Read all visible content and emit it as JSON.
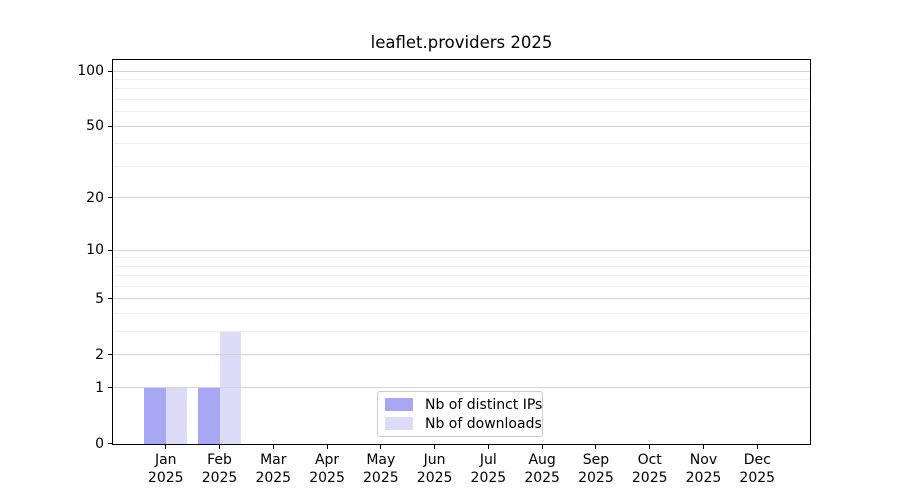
{
  "chart_data": {
    "type": "bar",
    "title": "leaflet.providers 2025",
    "categories": [
      "Jan 2025",
      "Feb 2025",
      "Mar 2025",
      "Apr 2025",
      "May 2025",
      "Jun 2025",
      "Jul 2025",
      "Aug 2025",
      "Sep 2025",
      "Oct 2025",
      "Nov 2025",
      "Dec 2025"
    ],
    "series": [
      {
        "name": "Nb of distinct IPs",
        "key": "distinct-ips",
        "values": [
          1,
          1,
          0,
          0,
          0,
          0,
          0,
          0,
          0,
          0,
          0,
          0
        ]
      },
      {
        "name": "Nb of downloads",
        "key": "downloads",
        "values": [
          1,
          3,
          0,
          0,
          0,
          0,
          0,
          0,
          0,
          0,
          0,
          0
        ]
      }
    ],
    "xlabel": "",
    "ylabel": "",
    "yscale": "log1p",
    "ylim": [
      0,
      115
    ],
    "ytick_values": [
      100,
      50,
      20,
      10,
      5,
      2,
      1,
      0
    ],
    "ytick_minor_values": [
      3,
      4,
      6,
      7,
      8,
      9,
      30,
      40,
      60,
      70,
      80,
      90
    ],
    "grid": "both",
    "legend_position": "lower center"
  },
  "colors": {
    "distinct_ips": "#a7a7f3",
    "downloads": "#dcdcf9",
    "grid_major": "#d3d3d3",
    "grid_minor": "#ededed",
    "axis": "#000000",
    "legend_border": "#cccccc"
  }
}
